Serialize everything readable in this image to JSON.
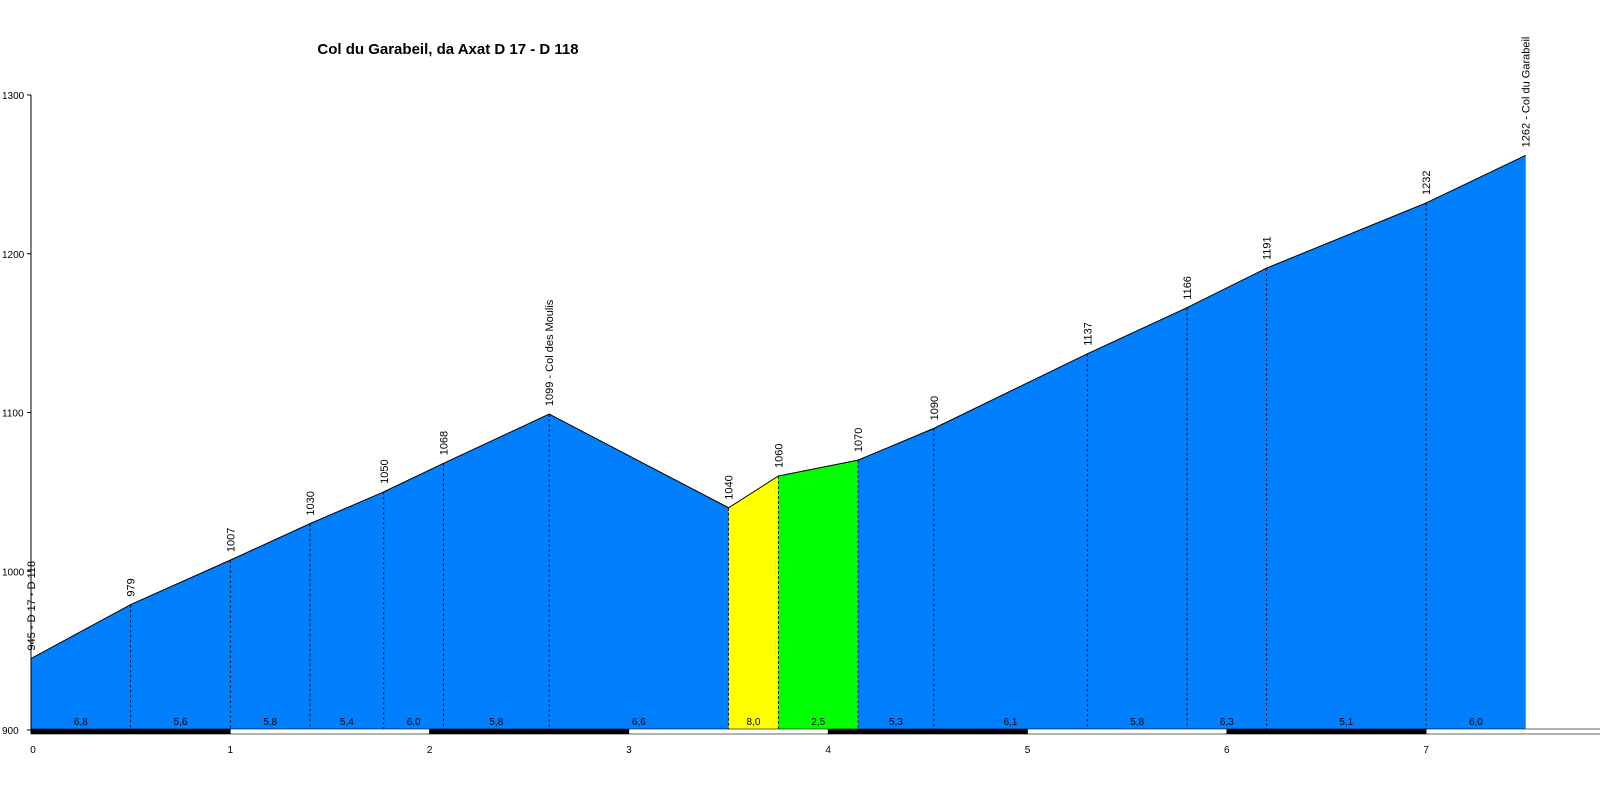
{
  "chart_data": {
    "type": "area",
    "title": "Col du Garabeil, da Axat D 17 - D 118",
    "ylim": [
      900,
      1300
    ],
    "xlim": [
      0,
      7.5
    ],
    "y_ticks": [
      900,
      1000,
      1100,
      1200,
      1300
    ],
    "x_ticks": [
      0,
      1,
      2,
      3,
      4,
      5,
      6,
      7
    ],
    "profile": [
      {
        "x": 0.0,
        "y": 945,
        "label": "945 - D 17 - D 118"
      },
      {
        "x": 0.5,
        "y": 979,
        "label": "979"
      },
      {
        "x": 1.0,
        "y": 1007,
        "label": "1007"
      },
      {
        "x": 1.4,
        "y": 1030,
        "label": "1030"
      },
      {
        "x": 1.77,
        "y": 1050,
        "label": "1050"
      },
      {
        "x": 2.07,
        "y": 1068,
        "label": "1068"
      },
      {
        "x": 2.6,
        "y": 1099,
        "label": "1099 - Col des Moulis"
      },
      {
        "x": 3.5,
        "y": 1040,
        "label": "1040"
      },
      {
        "x": 3.75,
        "y": 1060,
        "label": "1060"
      },
      {
        "x": 4.15,
        "y": 1070,
        "label": "1070"
      },
      {
        "x": 4.53,
        "y": 1090,
        "label": "1090"
      },
      {
        "x": 5.3,
        "y": 1137,
        "label": "1137"
      },
      {
        "x": 5.8,
        "y": 1166,
        "label": "1166"
      },
      {
        "x": 6.2,
        "y": 1191,
        "label": "1191"
      },
      {
        "x": 7.0,
        "y": 1232,
        "label": "1232"
      },
      {
        "x": 7.5,
        "y": 1262,
        "label": "1262 - Col du Garabeil"
      }
    ],
    "segments": [
      {
        "from": 0.0,
        "to": 0.5,
        "gradient": "6,8",
        "color": "#0080ff"
      },
      {
        "from": 0.5,
        "to": 1.0,
        "gradient": "5,6",
        "color": "#0080ff"
      },
      {
        "from": 1.0,
        "to": 1.4,
        "gradient": "5,8",
        "color": "#0080ff"
      },
      {
        "from": 1.4,
        "to": 1.77,
        "gradient": "5,4",
        "color": "#0080ff"
      },
      {
        "from": 1.77,
        "to": 2.07,
        "gradient": "6,0",
        "color": "#0080ff"
      },
      {
        "from": 2.07,
        "to": 2.6,
        "gradient": "5,8",
        "color": "#0080ff"
      },
      {
        "from": 2.6,
        "to": 3.5,
        "gradient": "6,6",
        "color": "#0080ff"
      },
      {
        "from": 3.5,
        "to": 3.75,
        "gradient": "8,0",
        "color": "#ffff00"
      },
      {
        "from": 3.75,
        "to": 4.15,
        "gradient": "2,5",
        "color": "#00ff00"
      },
      {
        "from": 4.15,
        "to": 4.53,
        "gradient": "5,3",
        "color": "#0080ff"
      },
      {
        "from": 4.53,
        "to": 5.3,
        "gradient": "6,1",
        "color": "#0080ff"
      },
      {
        "from": 5.3,
        "to": 5.8,
        "gradient": "5,8",
        "color": "#0080ff"
      },
      {
        "from": 5.8,
        "to": 6.2,
        "gradient": "6,3",
        "color": "#0080ff"
      },
      {
        "from": 6.2,
        "to": 7.0,
        "gradient": "5,1",
        "color": "#0080ff"
      },
      {
        "from": 7.0,
        "to": 7.5,
        "gradient": "6,0",
        "color": "#0080ff"
      }
    ]
  }
}
